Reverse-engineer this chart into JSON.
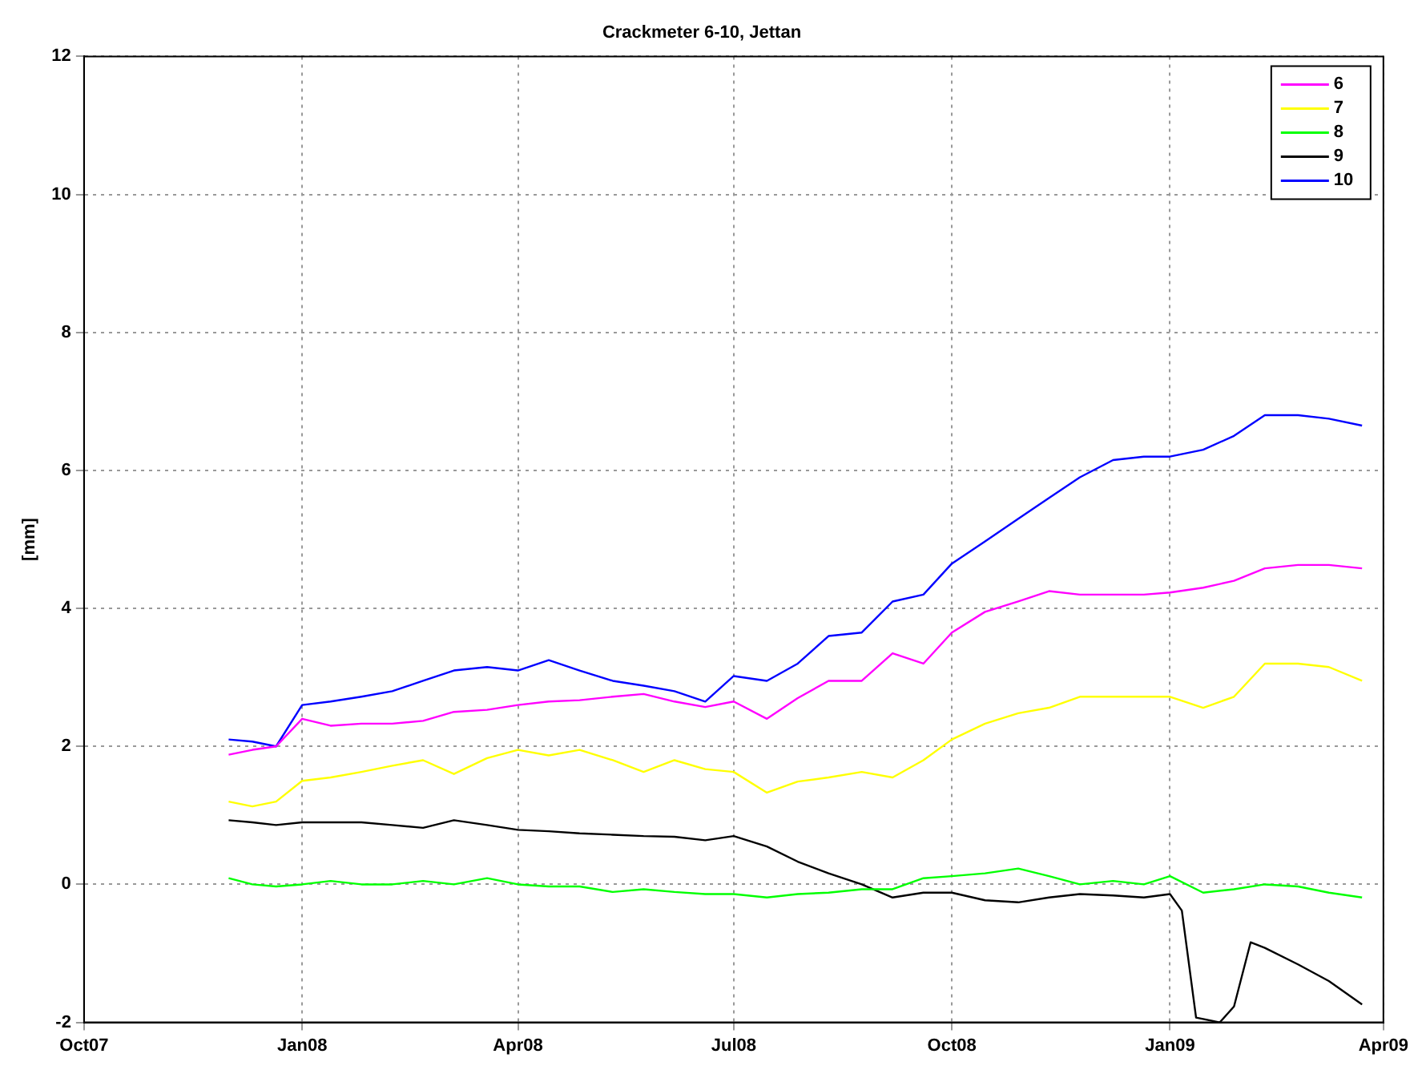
{
  "chart_data": {
    "type": "line",
    "title": "Crackmeter 6-10, Jettan",
    "ylabel": "[mm]",
    "x": [
      "2007-12-01",
      "2007-12-11",
      "2007-12-21",
      "2008-01-01",
      "2008-01-13",
      "2008-01-26",
      "2008-02-08",
      "2008-02-21",
      "2008-03-05",
      "2008-03-19",
      "2008-04-01",
      "2008-04-14",
      "2008-04-27",
      "2008-05-11",
      "2008-05-24",
      "2008-06-06",
      "2008-06-19",
      "2008-07-01",
      "2008-07-15",
      "2008-07-28",
      "2008-08-10",
      "2008-08-24",
      "2008-09-06",
      "2008-09-19",
      "2008-10-01",
      "2008-10-15",
      "2008-10-29",
      "2008-11-11",
      "2008-11-24",
      "2008-12-08",
      "2008-12-21",
      "2009-01-01",
      "2009-01-15",
      "2009-01-28",
      "2009-02-10",
      "2009-02-24",
      "2009-03-09",
      "2009-03-23"
    ],
    "series": [
      {
        "name": "6",
        "color": "#ff00ff",
        "values": [
          1.88,
          1.95,
          2.0,
          2.4,
          2.3,
          2.33,
          2.33,
          2.37,
          2.5,
          2.53,
          2.6,
          2.65,
          2.67,
          2.72,
          2.76,
          2.65,
          2.57,
          2.65,
          2.4,
          2.7,
          2.95,
          2.95,
          3.35,
          3.2,
          3.65,
          3.95,
          4.1,
          4.25,
          4.2,
          4.2,
          4.2,
          4.23,
          4.3,
          4.4,
          4.58,
          4.63,
          4.63,
          4.58
        ]
      },
      {
        "name": "7",
        "color": "#ffff00",
        "values": [
          1.2,
          1.13,
          1.2,
          1.5,
          1.55,
          1.63,
          1.72,
          1.8,
          1.6,
          1.83,
          1.95,
          1.87,
          1.95,
          1.8,
          1.63,
          1.8,
          1.67,
          1.63,
          1.33,
          1.49,
          1.55,
          1.63,
          1.55,
          1.8,
          2.1,
          2.33,
          2.48,
          2.56,
          2.72,
          2.72,
          2.72,
          2.72,
          2.56,
          2.72,
          3.2,
          3.2,
          3.15,
          2.95
        ]
      },
      {
        "name": "8",
        "color": "#00ff00",
        "values": [
          0.09,
          0,
          -0.03,
          0,
          0.05,
          0,
          0,
          0.05,
          0,
          0.09,
          0,
          -0.03,
          -0.03,
          -0.11,
          -0.07,
          -0.11,
          -0.14,
          -0.14,
          -0.19,
          -0.14,
          -0.12,
          -0.07,
          -0.07,
          0.09,
          0.12,
          0.16,
          0.23,
          0.12,
          0,
          0.05,
          0,
          0.12,
          -0.12,
          -0.07,
          0,
          -0.03,
          -0.12,
          -0.19
        ]
      },
      {
        "name": "9",
        "color": "#000000",
        "x": [
          "2007-12-01",
          "2007-12-11",
          "2007-12-21",
          "2008-01-01",
          "2008-01-13",
          "2008-01-26",
          "2008-02-08",
          "2008-02-21",
          "2008-03-05",
          "2008-03-19",
          "2008-04-01",
          "2008-04-14",
          "2008-04-27",
          "2008-05-11",
          "2008-05-24",
          "2008-06-06",
          "2008-06-19",
          "2008-07-01",
          "2008-07-15",
          "2008-07-28",
          "2008-08-10",
          "2008-08-24",
          "2008-09-06",
          "2008-09-19",
          "2008-10-01",
          "2008-10-15",
          "2008-10-29",
          "2008-11-11",
          "2008-11-24",
          "2008-12-08",
          "2008-12-21",
          "2009-01-01",
          "2009-01-06",
          "2009-01-12",
          "2009-01-22",
          "2009-01-28",
          "2009-02-04",
          "2009-02-10",
          "2009-02-24",
          "2009-03-09",
          "2009-03-23"
        ],
        "values": [
          0.93,
          0.9,
          0.86,
          0.9,
          0.9,
          0.9,
          0.86,
          0.82,
          0.93,
          0.86,
          0.79,
          0.77,
          0.74,
          0.72,
          0.7,
          0.69,
          0.64,
          0.7,
          0.55,
          0.33,
          0.16,
          0,
          -0.19,
          -0.12,
          -0.12,
          -0.23,
          -0.26,
          -0.19,
          -0.14,
          -0.16,
          -0.19,
          -0.14,
          -0.38,
          -1.93,
          -2.0,
          -1.77,
          -0.84,
          -0.92,
          -1.16,
          -1.4,
          -1.74
        ]
      },
      {
        "name": "10",
        "color": "#0000ff",
        "values": [
          2.1,
          2.07,
          2.0,
          2.6,
          2.65,
          2.72,
          2.8,
          2.95,
          3.1,
          3.15,
          3.1,
          3.25,
          3.1,
          2.95,
          2.88,
          2.8,
          2.65,
          3.02,
          2.95,
          3.2,
          3.6,
          3.65,
          4.1,
          4.2,
          4.65,
          4.97,
          5.3,
          5.6,
          5.9,
          6.15,
          6.2,
          6.2,
          6.3,
          6.5,
          6.8,
          6.8,
          6.75,
          6.65
        ]
      }
    ],
    "xlim": [
      "2007-10-01",
      "2009-04-01"
    ],
    "xticks": [
      {
        "value": "2007-10-01",
        "label": "Oct07"
      },
      {
        "value": "2008-01-01",
        "label": "Jan08"
      },
      {
        "value": "2008-04-01",
        "label": "Apr08"
      },
      {
        "value": "2008-07-01",
        "label": "Jul08"
      },
      {
        "value": "2008-10-01",
        "label": "Oct08"
      },
      {
        "value": "2009-01-01",
        "label": "Jan09"
      },
      {
        "value": "2009-04-01",
        "label": "Apr09"
      }
    ],
    "ylim": [
      -2,
      12
    ],
    "yticks": [
      -2,
      0,
      2,
      4,
      6,
      8,
      10,
      12
    ],
    "grid": true,
    "legend": "top right",
    "marker": "none",
    "line_style": "solid"
  }
}
